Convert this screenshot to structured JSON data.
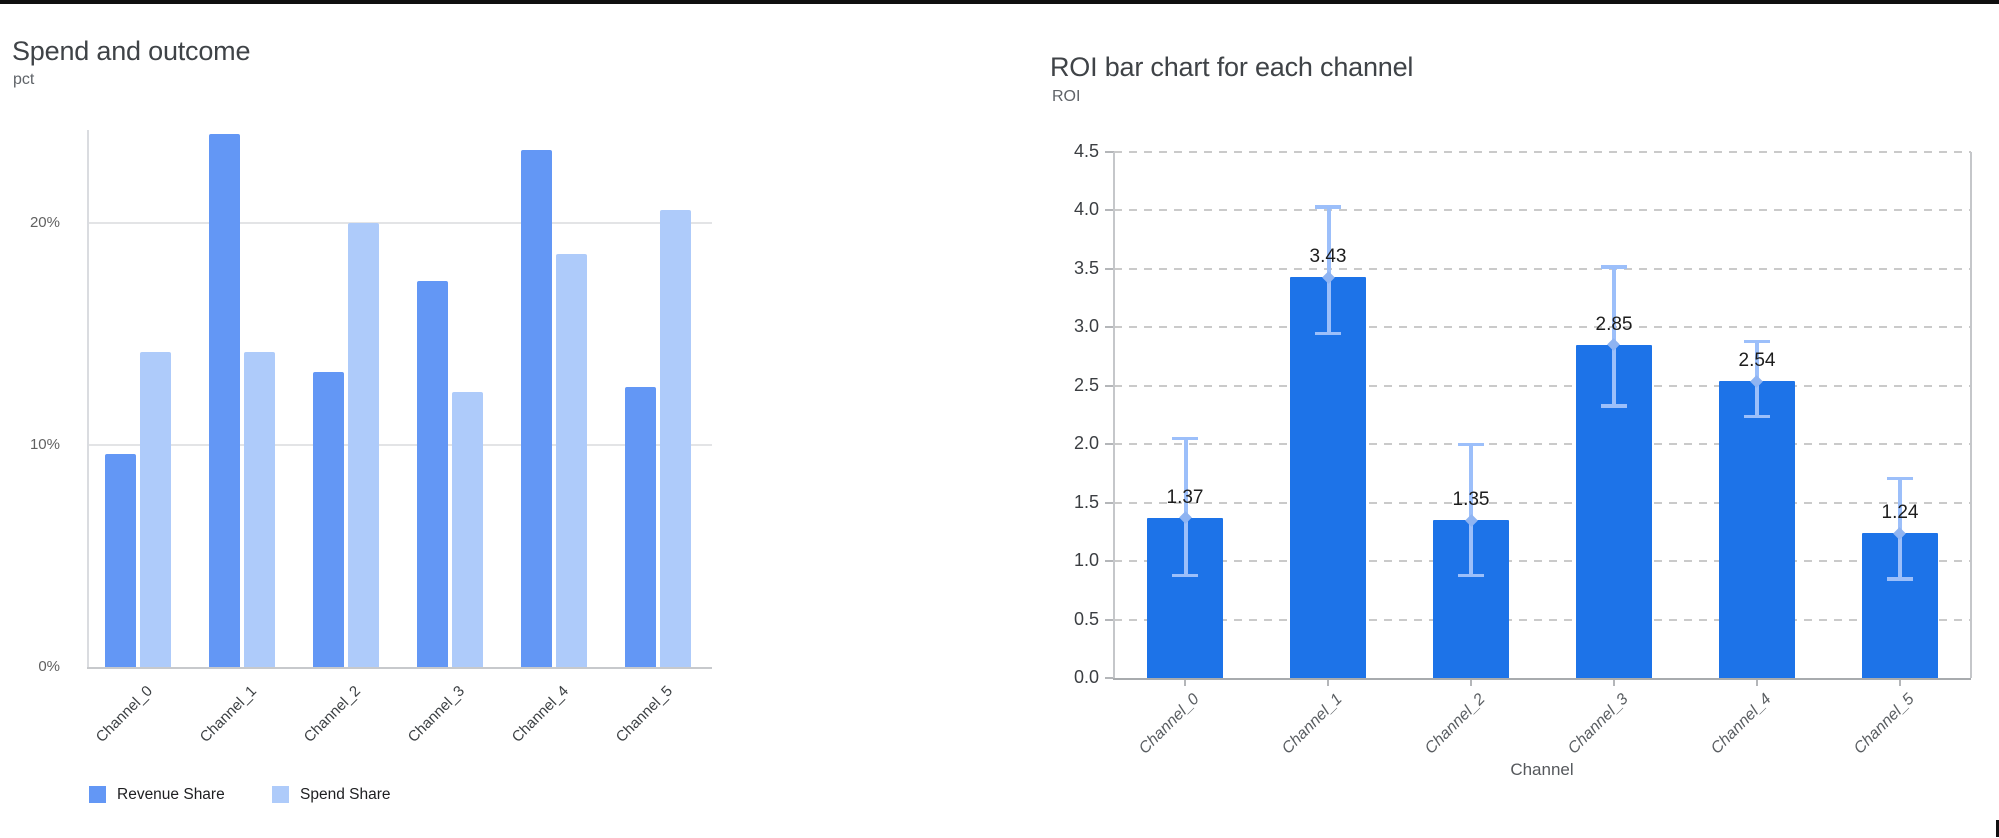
{
  "page": {
    "background": "#ffffff",
    "bottom_rule_color": "#101010"
  },
  "chart_data": [
    {
      "id": "spend-and-outcome",
      "type": "bar",
      "title": "Spend and outcome",
      "ylabel": "pct",
      "xlabel": "",
      "categories": [
        "Channel_0",
        "Channel_1",
        "Channel_2",
        "Channel_3",
        "Channel_4",
        "Channel_5"
      ],
      "series": [
        {
          "name": "Revenue Share",
          "color": "#6397F5",
          "values": [
            9.6,
            24.0,
            13.3,
            17.4,
            23.3,
            12.6
          ]
        },
        {
          "name": "Spend Share",
          "color": "#AECBFA",
          "values": [
            14.2,
            14.2,
            20.0,
            12.4,
            18.6,
            20.6
          ]
        }
      ],
      "value_unit": "%",
      "yticks": [
        {
          "value": 0,
          "label": "0%"
        },
        {
          "value": 10,
          "label": "10%"
        },
        {
          "value": 20,
          "label": "20%"
        }
      ],
      "ylim": [
        0,
        24.2
      ],
      "grid": "horizontal-solid",
      "legend_position": "bottom"
    },
    {
      "id": "roi-by-channel",
      "type": "bar",
      "title": "ROI bar chart for each channel",
      "ylabel": "ROI",
      "xlabel": "Channel",
      "categories": [
        "Channel_0",
        "Channel_1",
        "Channel_2",
        "Channel_3",
        "Channel_4",
        "Channel_5"
      ],
      "values": [
        1.37,
        3.43,
        1.35,
        2.85,
        2.54,
        1.24
      ],
      "bar_labels": [
        "1.37",
        "3.43",
        "1.35",
        "2.85",
        "2.54",
        "1.24"
      ],
      "error_low": [
        0.88,
        2.95,
        0.88,
        2.33,
        2.24,
        0.85
      ],
      "error_high": [
        2.05,
        4.03,
        2.0,
        3.52,
        2.88,
        1.71
      ],
      "bar_color": "#1D73E8",
      "error_color": "#9CBFFA",
      "error_marker_color": "#8FB4F2",
      "yticks": [
        {
          "value": 0.0,
          "label": "0.0"
        },
        {
          "value": 0.5,
          "label": "0.5"
        },
        {
          "value": 1.0,
          "label": "1.0"
        },
        {
          "value": 1.5,
          "label": "1.5"
        },
        {
          "value": 2.0,
          "label": "2.0"
        },
        {
          "value": 2.5,
          "label": "2.5"
        },
        {
          "value": 3.0,
          "label": "3.0"
        },
        {
          "value": 3.5,
          "label": "3.5"
        },
        {
          "value": 4.0,
          "label": "4.0"
        },
        {
          "value": 4.5,
          "label": "4.5"
        }
      ],
      "ylim": [
        0,
        4.5
      ],
      "grid": "horizontal-dashed",
      "legend_position": "none"
    }
  ]
}
